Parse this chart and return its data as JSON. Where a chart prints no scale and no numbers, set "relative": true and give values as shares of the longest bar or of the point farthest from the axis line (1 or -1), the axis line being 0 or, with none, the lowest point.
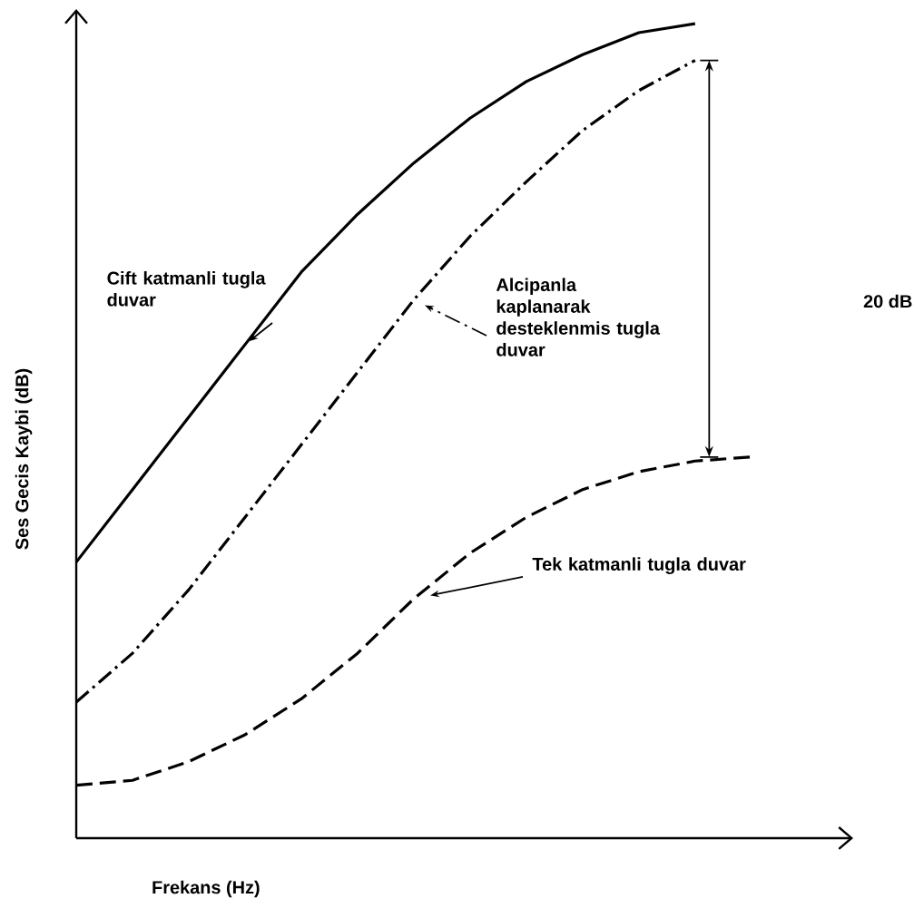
{
  "chart_data": {
    "type": "line",
    "relative": true,
    "xlabel": "Frekans (Hz)",
    "ylabel": "Ses Gecis Kaybi (dB)",
    "categories": [
      null,
      null,
      null,
      null,
      null,
      null,
      null,
      null,
      null,
      null,
      null,
      null,
      null
    ],
    "series": [
      {
        "name": "Cift katmanli tugla duvar",
        "color": "#000000",
        "line_style": "solid",
        "values": [
          0.339,
          0.428,
          0.517,
          0.606,
          0.695,
          0.766,
          0.829,
          0.884,
          0.929,
          0.962,
          0.989,
          1,
          null
        ]
      },
      {
        "name": "Alcipanla kaplanarak desteklenmis tugla duvar",
        "color": "#000000",
        "line_style": "dashdot",
        "values": [
          0.167,
          0.227,
          0.305,
          0.394,
          0.483,
          0.572,
          0.661,
          0.739,
          0.806,
          0.869,
          0.918,
          0.955,
          null
        ]
      },
      {
        "name": "Tek katmanli tugla duvar",
        "color": "#000000",
        "line_style": "dashed",
        "values": [
          0.065,
          0.071,
          0.094,
          0.127,
          0.171,
          0.227,
          0.294,
          0.35,
          0.394,
          0.428,
          0.45,
          0.463,
          0.468
        ]
      }
    ],
    "annotations": [
      "20 dB"
    ]
  }
}
